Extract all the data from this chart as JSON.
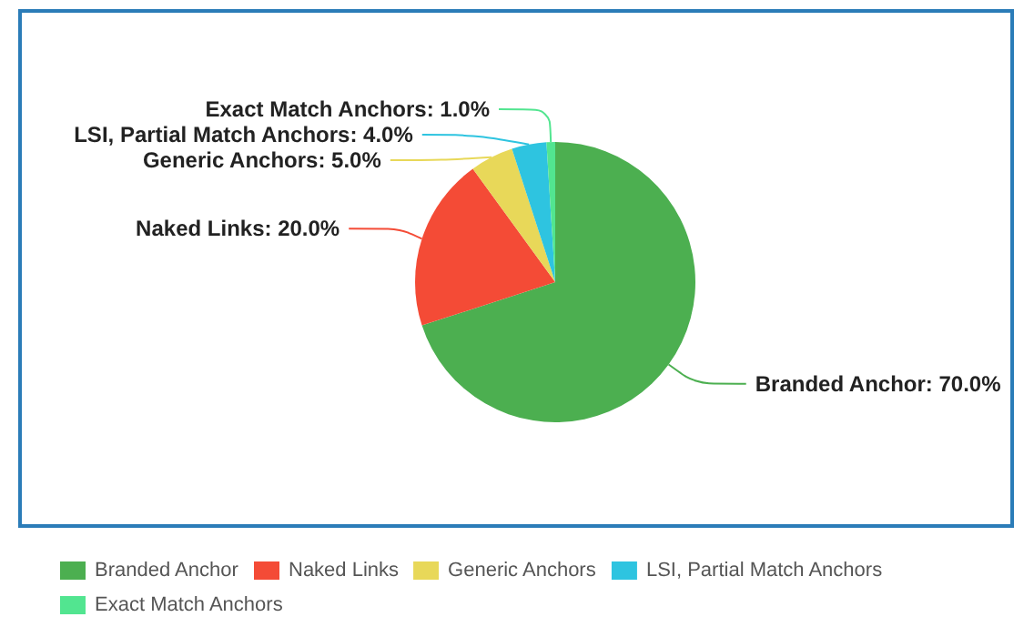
{
  "chart_data": {
    "type": "pie",
    "categories": [
      "Branded Anchor",
      "Naked Links",
      "Generic Anchors",
      "LSI, Partial Match Anchors",
      "Exact Match Anchors"
    ],
    "values": [
      70,
      20,
      5,
      4,
      1
    ],
    "colors": [
      "#4caf50",
      "#f44b36",
      "#e8d859",
      "#2ec4e0",
      "#52e590"
    ],
    "value_labels": [
      "Branded Anchor: 70.0%",
      "Naked Links: 20.0%",
      "Generic Anchors: 5.0%",
      "LSI, Partial Match Anchors: 4.0%",
      "Exact Match Anchors: 1.0%"
    ],
    "legend": "bottom"
  }
}
